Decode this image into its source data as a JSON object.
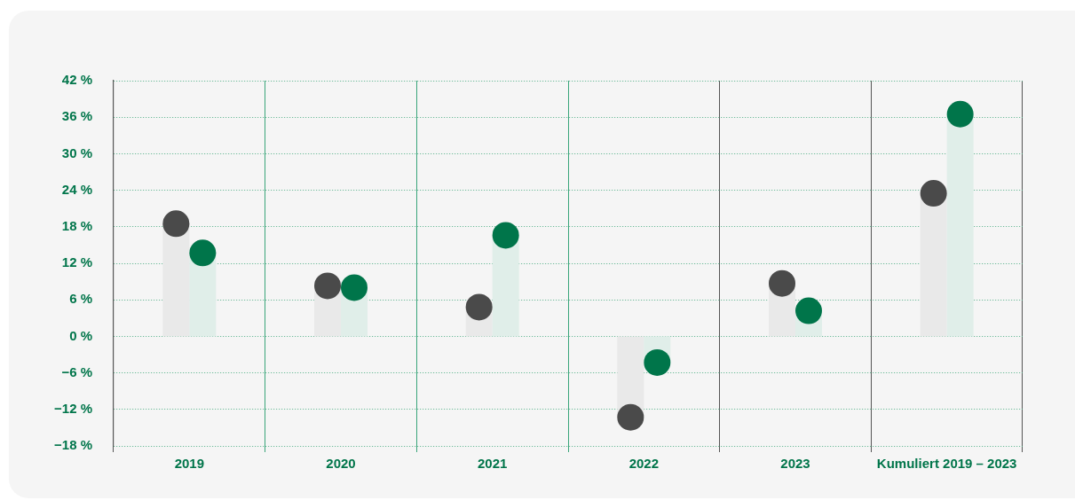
{
  "chart_data": {
    "type": "lollipop",
    "categories": [
      "2019",
      "2020",
      "2021",
      "2022",
      "2023",
      "Kumuliert 2019 – 2023"
    ],
    "series": [
      {
        "color": "#4a4a4a",
        "values": [
          18.5,
          8.3,
          4.8,
          -13.3,
          8.7,
          23.5
        ]
      },
      {
        "color": "#00754a",
        "values": [
          13.7,
          8.0,
          16.6,
          -4.3,
          4.2,
          36.5
        ]
      }
    ],
    "ylim": [
      -18,
      42
    ],
    "yticks": [
      {
        "value": -18,
        "label": "−18 %"
      },
      {
        "value": -12,
        "label": "−12 %"
      },
      {
        "value": -6,
        "label": "−6 %"
      },
      {
        "value": 0,
        "label": "0 %"
      },
      {
        "value": 6,
        "label": "6 %"
      },
      {
        "value": 12,
        "label": "12 %"
      },
      {
        "value": 18,
        "label": "18 %"
      },
      {
        "value": 24,
        "label": "24 %"
      },
      {
        "value": 30,
        "label": "30 %"
      },
      {
        "value": 36,
        "label": "36 %"
      },
      {
        "value": 42,
        "label": "42 %"
      }
    ],
    "grid": true,
    "marker": "circle"
  }
}
